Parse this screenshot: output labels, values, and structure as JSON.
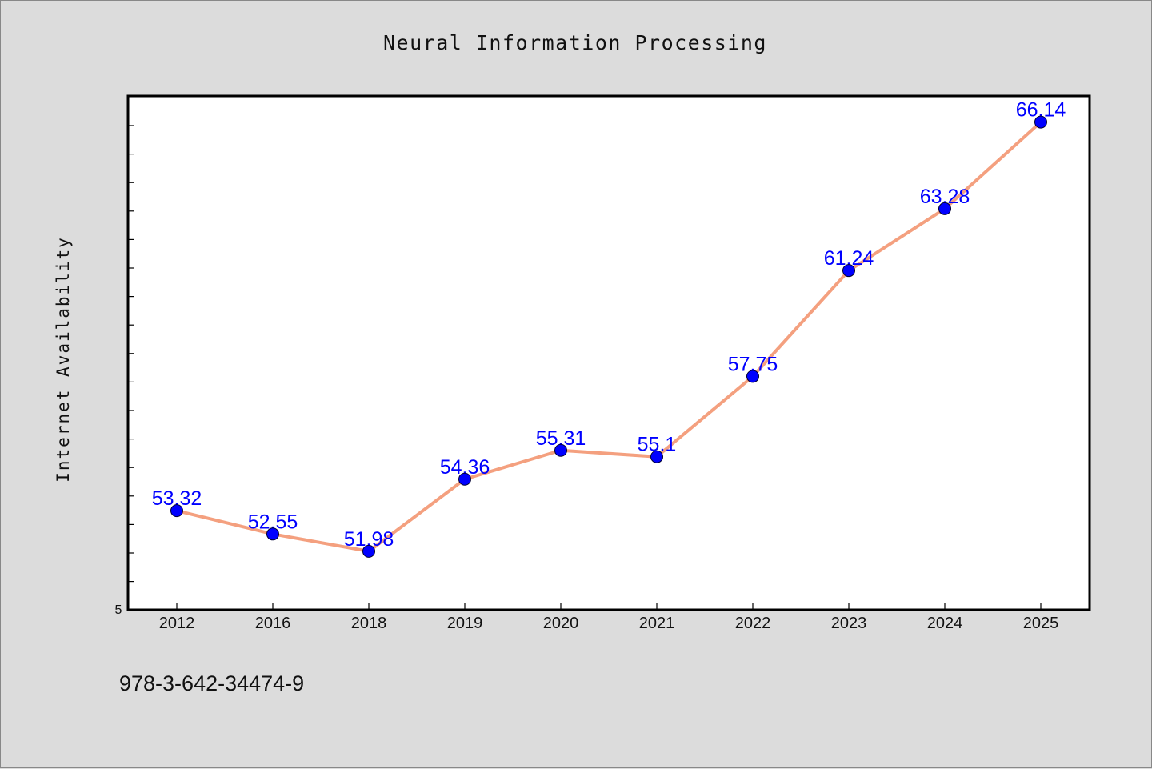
{
  "chart_data": {
    "type": "line",
    "title": "Neural Information Processing",
    "xlabel": "",
    "ylabel": "Internet Availability",
    "categories": [
      "2012",
      "2016",
      "2018",
      "2019",
      "2020",
      "2021",
      "2022",
      "2023",
      "2024",
      "2025"
    ],
    "series": [
      {
        "values": [
          53.32,
          52.55,
          51.98,
          54.36,
          55.31,
          55.1,
          57.75,
          61.24,
          63.28,
          66.14
        ],
        "labels": [
          "53.32",
          "52.55",
          "51.98",
          "54.36",
          "55.31",
          "55.1",
          "57.75",
          "61.24",
          "63.28",
          "66.14"
        ],
        "line_color": "#f4a07f",
        "marker_color": "#0000ff"
      }
    ],
    "ylim": [
      50.05,
      67
    ],
    "y_tick_label": "5",
    "grid": false,
    "legend": "none"
  },
  "footer_text": "978-3-642-34474-9",
  "colors": {
    "background": "#dcdcdc",
    "plot_background": "#ffffff",
    "line": "#f4a07f",
    "marker": "#0000ff",
    "label": "#0000ff"
  }
}
